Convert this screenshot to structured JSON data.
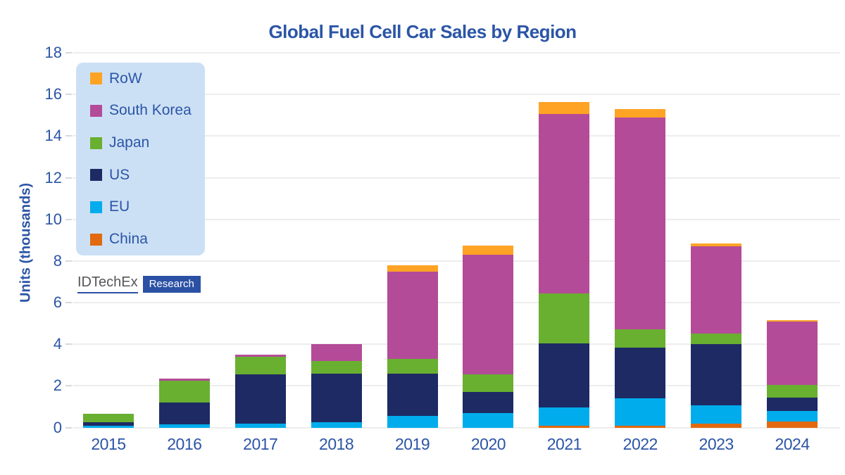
{
  "title": "Global Fuel Cell Car Sales by Region",
  "y_axis": {
    "label": "Units (thousands)",
    "min": 0,
    "max": 18,
    "step": 2
  },
  "legend": {
    "order": [
      "RoW",
      "South Korea",
      "Japan",
      "US",
      "EU",
      "China"
    ]
  },
  "logo": {
    "brand": "IDTechEx",
    "suffix": "Research"
  },
  "colors": {
    "title_text": "#2B55A6",
    "axis_text": "#2B55A6",
    "gridline": "#EDEDED",
    "tick": "#D8D8D8",
    "legend_bg": "#CCE0F5",
    "legend_text": "#2B55A6",
    "logo_text": "#55565A",
    "logo_underline": "#2B51A5",
    "logo_box": "#2B51A5"
  },
  "chart_data": {
    "type": "bar",
    "stacked": true,
    "title": "Global Fuel Cell Car Sales by Region",
    "xlabel": "",
    "ylabel": "Units (thousands)",
    "ylim": [
      0,
      18
    ],
    "ytick_step": 2,
    "grid": true,
    "legend_position": "upper-left",
    "categories": [
      "2015",
      "2016",
      "2017",
      "2018",
      "2019",
      "2020",
      "2021",
      "2022",
      "2023",
      "2024"
    ],
    "series": [
      {
        "name": "China",
        "color": "#E2690F",
        "values": [
          0,
          0,
          0,
          0,
          0,
          0,
          0.1,
          0.1,
          0.2,
          0.3
        ]
      },
      {
        "name": "EU",
        "color": "#00ACEC",
        "values": [
          0.1,
          0.15,
          0.2,
          0.25,
          0.55,
          0.7,
          0.85,
          1.3,
          0.85,
          0.5
        ]
      },
      {
        "name": "US",
        "color": "#1D2A64",
        "values": [
          0.15,
          1.05,
          2.35,
          2.35,
          2.05,
          1.0,
          3.1,
          2.45,
          2.95,
          0.65
        ]
      },
      {
        "name": "Japan",
        "color": "#69AF30",
        "values": [
          0.4,
          1.05,
          0.85,
          0.6,
          0.7,
          0.85,
          2.4,
          0.85,
          0.5,
          0.6
        ]
      },
      {
        "name": "South Korea",
        "color": "#B44B98",
        "values": [
          0,
          0.1,
          0.1,
          0.8,
          4.2,
          5.75,
          8.6,
          10.2,
          4.2,
          3.05
        ]
      },
      {
        "name": "RoW",
        "color": "#FFA324",
        "values": [
          0,
          0,
          0,
          0,
          0.3,
          0.45,
          0.6,
          0.4,
          0.15,
          0.05
        ]
      }
    ],
    "totals": [
      0.65,
      2.35,
      3.5,
      4.0,
      7.8,
      8.75,
      15.65,
      15.3,
      8.85,
      5.15
    ]
  }
}
